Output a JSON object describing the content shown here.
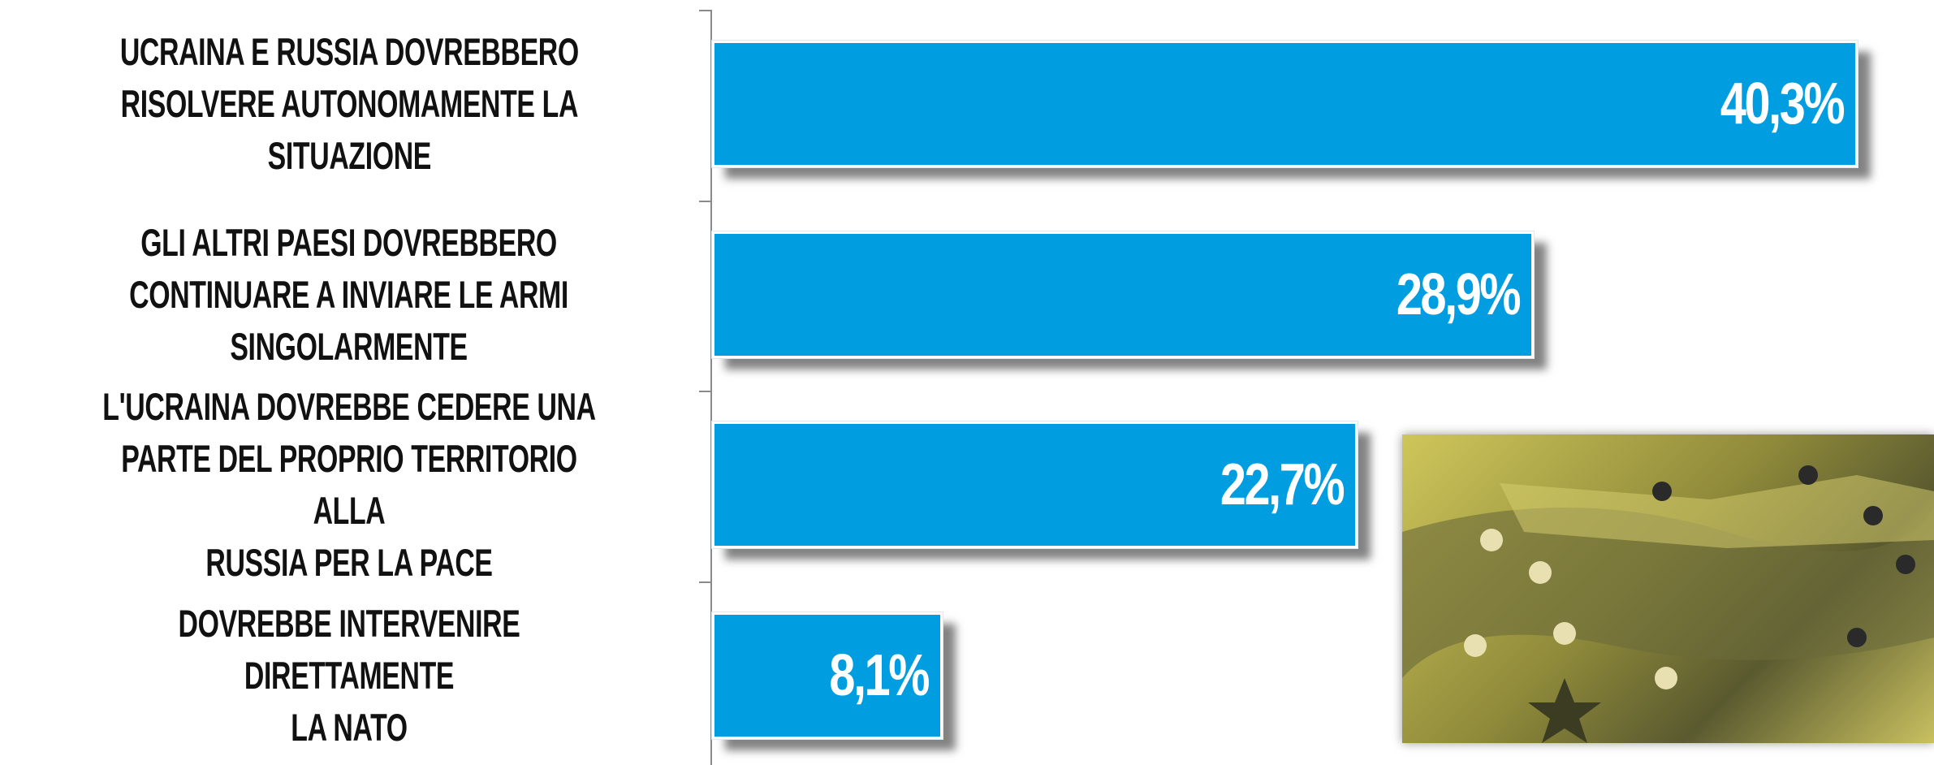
{
  "chart_data": {
    "type": "bar",
    "orientation": "horizontal",
    "color": "#009ee0",
    "categories": [
      "UCRAINA E RUSSIA DOVREBBERO\nRISOLVERE AUTONOMAMENTE LA\nSITUAZIONE",
      "GLI ALTRI PAESI DOVREBBERO\nCONTINUARE A INVIARE LE ARMI\nSINGOLARMENTE",
      "L'UCRAINA DOVREBBE CEDERE UNA\nPARTE DEL PROPRIO TERRITORIO ALLA\nRUSSIA PER  LA PACE",
      "DOVREBBE INTERVENIRE DIRETTAMENTE\nLA NATO"
    ],
    "values": [
      40.3,
      28.9,
      22.7,
      8.1
    ],
    "value_labels": [
      "40,3%",
      "28,9%",
      "22,7%",
      "8,1%"
    ]
  }
}
